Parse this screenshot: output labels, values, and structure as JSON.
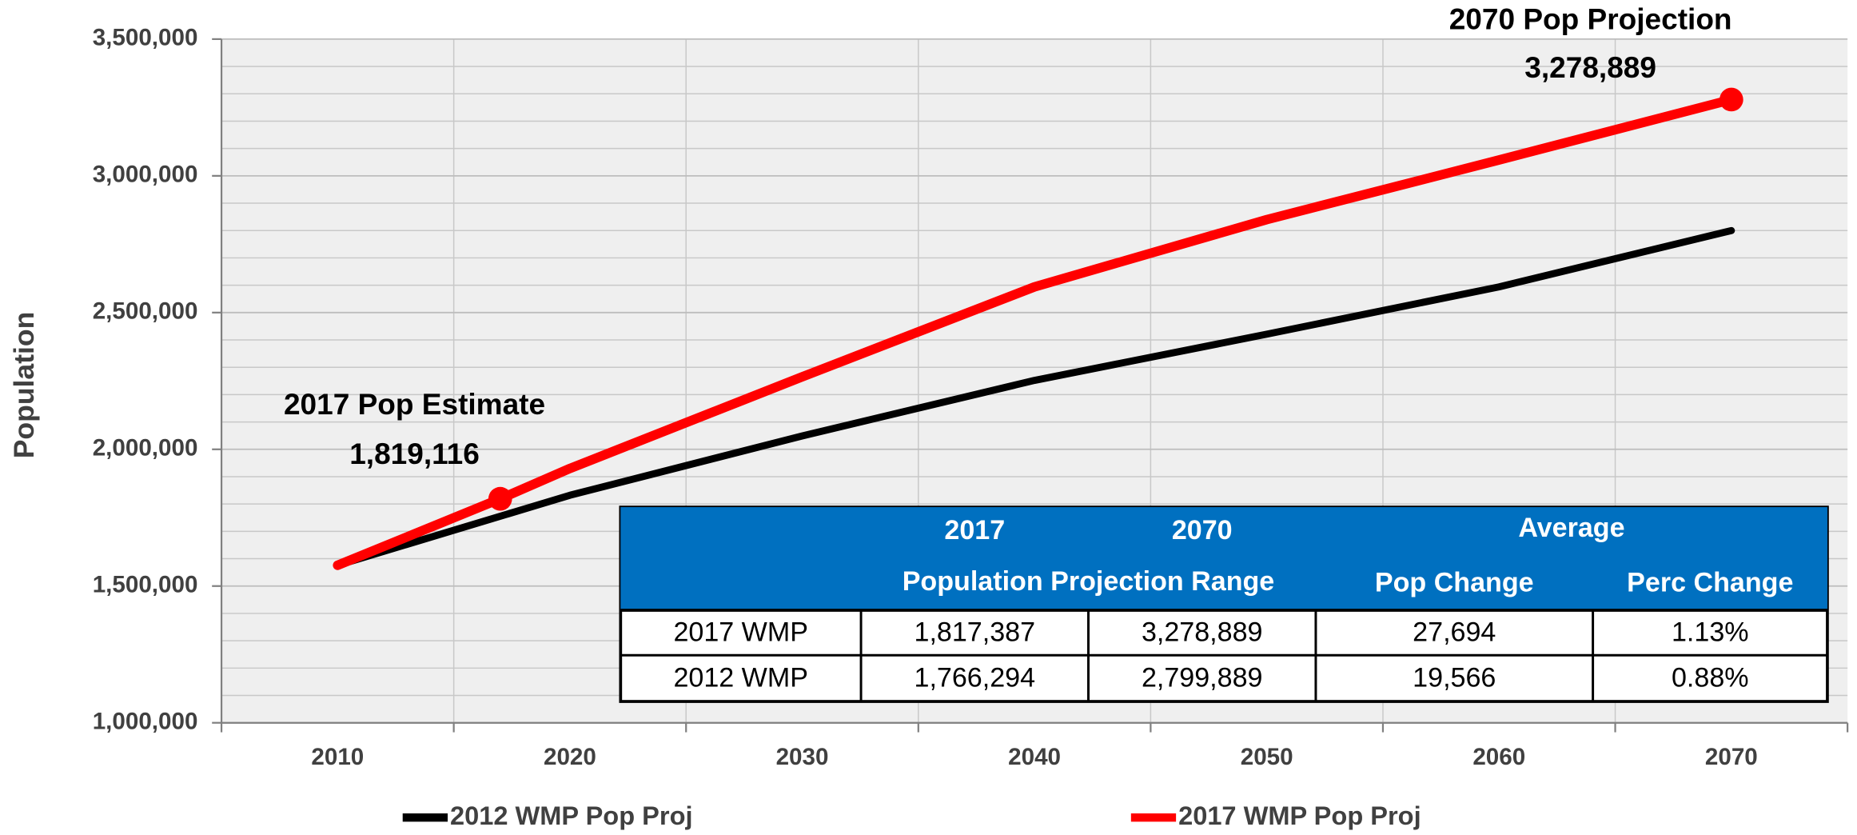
{
  "chart_data": {
    "type": "line",
    "y_label": "Population",
    "xlim": [
      2005,
      2075
    ],
    "xticks": [
      2010,
      2020,
      2030,
      2040,
      2050,
      2060,
      2070
    ],
    "ylim": [
      1000000,
      3500000
    ],
    "yticks": [
      {
        "value": 1000000,
        "label": "1,000,000"
      },
      {
        "value": 1500000,
        "label": "1,500,000"
      },
      {
        "value": 2000000,
        "label": "2,000,000"
      },
      {
        "value": 2500000,
        "label": "2,500,000"
      },
      {
        "value": 3000000,
        "label": "3,000,000"
      },
      {
        "value": 3500000,
        "label": "3,500,000"
      }
    ],
    "grid": true,
    "series": [
      {
        "name": "2012 WMP Pop Proj",
        "color": "#000000",
        "x": [
          2010,
          2020,
          2030,
          2040,
          2050,
          2060,
          2070
        ],
        "values": [
          1576000,
          1832000,
          2049000,
          2252000,
          2421000,
          2594000,
          2799889
        ]
      },
      {
        "name": "2017 WMP Pop Proj",
        "color": "#ff0000",
        "x": [
          2010,
          2017,
          2020,
          2030,
          2040,
          2050,
          2060,
          2070
        ],
        "values": [
          1576000,
          1819116,
          1930000,
          2265000,
          2594000,
          2840000,
          3058000,
          3278889
        ]
      }
    ],
    "annotations": [
      {
        "title": "2017 Pop Estimate",
        "text": "1,819,116"
      },
      {
        "title": "2070 Pop Projection",
        "text": "3,278,889"
      }
    ],
    "table": {
      "header_top": [
        "2017",
        "2070",
        "Average"
      ],
      "header_bottom": [
        "Population Projection Range",
        "Pop Change",
        "Perc Change"
      ],
      "rows": [
        [
          "2017 WMP",
          "1,817,387",
          "3,278,889",
          "27,694",
          "1.13%"
        ],
        [
          "2012 WMP",
          "1,766,294",
          "2,799,889",
          "19,566",
          "0.88%"
        ]
      ]
    }
  }
}
